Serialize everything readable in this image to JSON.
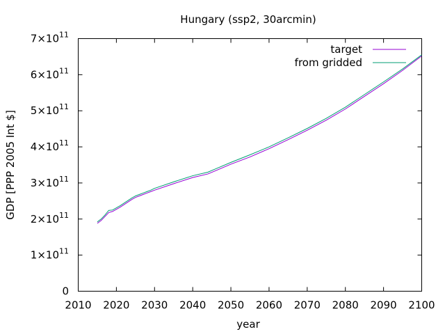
{
  "chart_data": {
    "type": "line",
    "title": "Hungary (ssp2, 30arcmin)",
    "xlabel": "year",
    "ylabel": "GDP [PPP 2005 Int $]",
    "xlim": [
      2010,
      2100
    ],
    "ylim": [
      0,
      700000000000
    ],
    "x_ticks": [
      "2010",
      "2020",
      "2030",
      "2040",
      "2050",
      "2060",
      "2070",
      "2080",
      "2090",
      "2100"
    ],
    "y_ticks": [
      {
        "value": 0,
        "mantissa": "0",
        "times": "",
        "base": "",
        "exponent": ""
      },
      {
        "value": 100000000000,
        "mantissa": "1",
        "times": "×",
        "base": "10",
        "exponent": "11"
      },
      {
        "value": 200000000000,
        "mantissa": "2",
        "times": "×",
        "base": "10",
        "exponent": "11"
      },
      {
        "value": 300000000000,
        "mantissa": "3",
        "times": "×",
        "base": "10",
        "exponent": "11"
      },
      {
        "value": 400000000000,
        "mantissa": "4",
        "times": "×",
        "base": "10",
        "exponent": "11"
      },
      {
        "value": 500000000000,
        "mantissa": "5",
        "times": "×",
        "base": "10",
        "exponent": "11"
      },
      {
        "value": 600000000000,
        "mantissa": "6",
        "times": "×",
        "base": "10",
        "exponent": "11"
      },
      {
        "value": 700000000000,
        "mantissa": "7",
        "times": "×",
        "base": "10",
        "exponent": "11"
      }
    ],
    "grid": false,
    "legend": "top-right",
    "x": [
      2015,
      2016,
      2017,
      2018,
      2019,
      2020,
      2021,
      2022,
      2023,
      2024,
      2025,
      2026,
      2027,
      2028,
      2029,
      2030,
      2035,
      2040,
      2044,
      2046,
      2050,
      2055,
      2060,
      2065,
      2070,
      2075,
      2080,
      2085,
      2090,
      2095,
      2100
    ],
    "series": [
      {
        "name": "target",
        "color": "#9400d3",
        "values": [
          188000000000,
          196000000000,
          207000000000,
          218000000000,
          221000000000,
          227000000000,
          233000000000,
          240000000000,
          247000000000,
          254000000000,
          260000000000,
          264000000000,
          268000000000,
          272000000000,
          276000000000,
          280000000000,
          298000000000,
          315000000000,
          325000000000,
          334000000000,
          352000000000,
          372000000000,
          395000000000,
          420000000000,
          446000000000,
          474000000000,
          505000000000,
          540000000000,
          575000000000,
          612000000000,
          652000000000
        ]
      },
      {
        "name": "from gridded",
        "color": "#009e73",
        "values": [
          192000000000,
          200000000000,
          211000000000,
          224000000000,
          225000000000,
          231000000000,
          237000000000,
          244000000000,
          251000000000,
          258000000000,
          264000000000,
          268000000000,
          272000000000,
          276000000000,
          280000000000,
          285000000000,
          303000000000,
          320000000000,
          330000000000,
          339000000000,
          357000000000,
          378000000000,
          400000000000,
          425000000000,
          451000000000,
          479000000000,
          510000000000,
          545000000000,
          580000000000,
          616000000000,
          655000000000
        ]
      }
    ]
  }
}
